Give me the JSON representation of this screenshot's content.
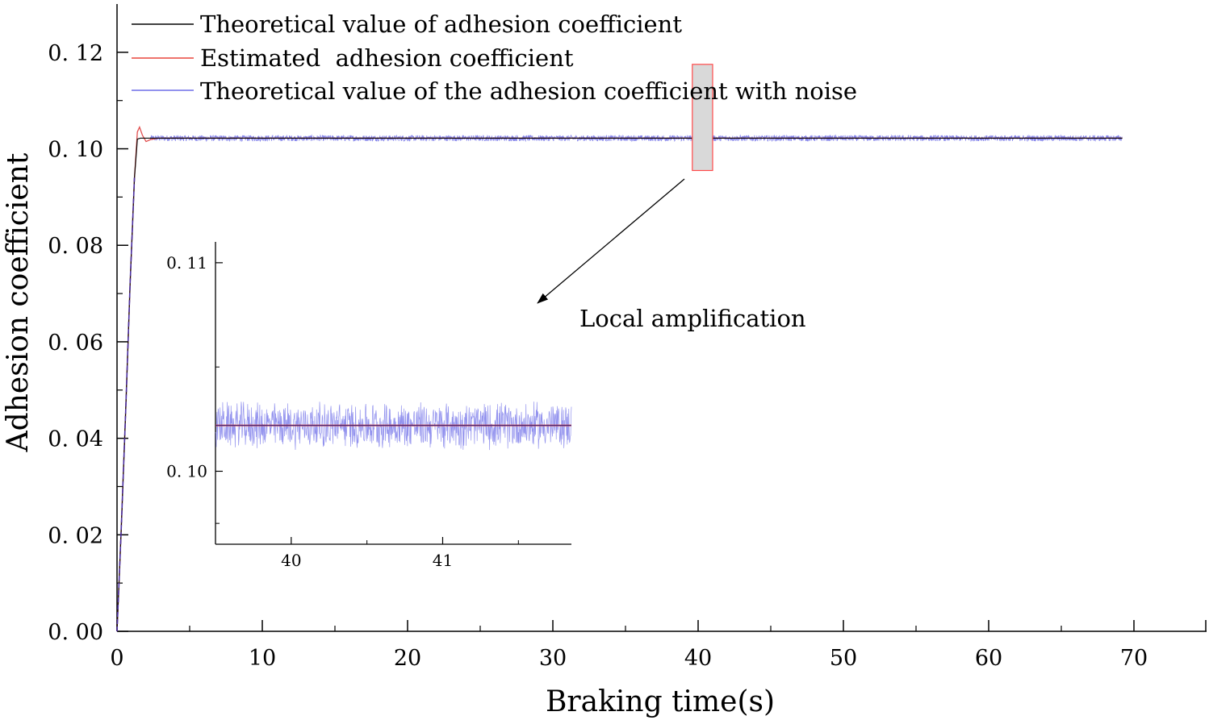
{
  "chart_data": {
    "type": "line",
    "title": "",
    "xlabel": "Braking time(s)",
    "ylabel": "Adhesion coefficient",
    "xlim": [
      0,
      75
    ],
    "ylim": [
      0,
      0.13
    ],
    "x_ticks": [
      0,
      10,
      20,
      30,
      40,
      50,
      60,
      70
    ],
    "x_tick_labels": [
      "0",
      "10",
      "20",
      "30",
      "40",
      "50",
      "60",
      "70"
    ],
    "y_ticks": [
      0,
      0.02,
      0.04,
      0.06,
      0.08,
      0.1,
      0.12
    ],
    "y_tick_labels": [
      "0. 00",
      "0. 02",
      "0. 04",
      "0. 06",
      "0. 08",
      "0. 10",
      "0. 12"
    ],
    "grid": false,
    "legend_position": "top-left",
    "series": [
      {
        "name": "Theoretical value of adhesion coefficient",
        "color": "#000000",
        "points": [
          [
            0,
            0
          ],
          [
            0.3,
            0.022
          ],
          [
            0.6,
            0.046
          ],
          [
            0.9,
            0.072
          ],
          [
            1.2,
            0.094
          ],
          [
            1.4,
            0.102
          ],
          [
            1.6,
            0.1022
          ],
          [
            69.2,
            0.1022
          ]
        ]
      },
      {
        "name": "Estimated  adhesion coefficient",
        "color": "#e8453c",
        "points": [
          [
            0,
            0
          ],
          [
            0.3,
            0.022
          ],
          [
            0.6,
            0.046
          ],
          [
            0.9,
            0.072
          ],
          [
            1.2,
            0.094
          ],
          [
            1.4,
            0.1035
          ],
          [
            1.55,
            0.1045
          ],
          [
            1.75,
            0.1028
          ],
          [
            2.0,
            0.1015
          ],
          [
            2.3,
            0.1019
          ],
          [
            2.8,
            0.1022
          ],
          [
            69.2,
            0.1022
          ]
        ]
      },
      {
        "name": "Theoretical value of the adhesion coefficient with noise",
        "color": "#6f6fe8",
        "base_level": 0.1022,
        "noise_amplitude": 0.0006,
        "points": [
          [
            0,
            0
          ],
          [
            0.3,
            0.022
          ],
          [
            0.6,
            0.046
          ],
          [
            0.9,
            0.072
          ],
          [
            1.2,
            0.094
          ],
          [
            1.4,
            0.1035
          ],
          [
            1.55,
            0.1045
          ],
          [
            1.75,
            0.1028
          ],
          [
            2.0,
            0.1015
          ],
          [
            2.3,
            0.1019
          ],
          [
            69.2,
            0.1022
          ]
        ]
      }
    ],
    "zoom_region": {
      "x": [
        39.6,
        41.0
      ],
      "y": [
        0.0955,
        0.1175
      ]
    },
    "annotation": "Local amplification",
    "inset": {
      "xlim": [
        39.5,
        41.85
      ],
      "ylim": [
        0.0965,
        0.111
      ],
      "x_ticks": [
        40,
        41
      ],
      "x_tick_labels": [
        "40",
        "41"
      ],
      "y_ticks": [
        0.1,
        0.11
      ],
      "y_tick_labels": [
        "0. 10",
        "0. 11"
      ],
      "line_level": 0.1022,
      "noise_amplitude": 0.0012
    }
  }
}
